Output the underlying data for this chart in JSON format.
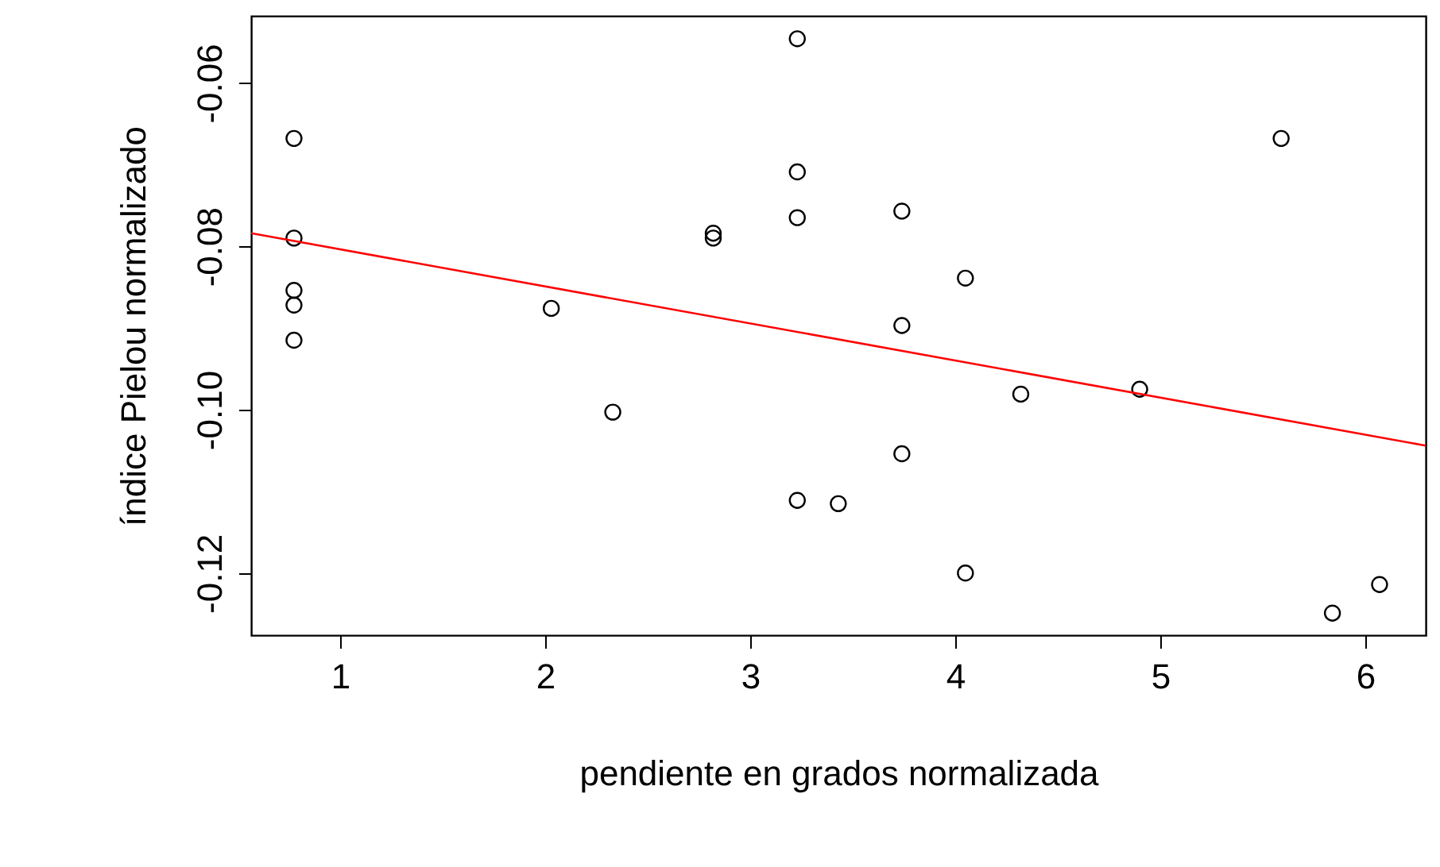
{
  "chart_data": {
    "type": "scatter",
    "xlabel": "pendiente en grados normalizada",
    "ylabel": "índice Pielou normalizado",
    "xlim": [
      0.566,
      6.295
    ],
    "ylim": [
      -0.1276,
      -0.0518
    ],
    "xticks": [
      1,
      2,
      3,
      4,
      5,
      6
    ],
    "yticks": [
      {
        "value": -0.12,
        "label": "-0.12"
      },
      {
        "value": -0.1,
        "label": "-0.10"
      },
      {
        "value": -0.08,
        "label": "-0.08"
      },
      {
        "value": -0.06,
        "label": "-0.06"
      }
    ],
    "grid": false,
    "series": [
      {
        "marker": "circle",
        "color": "#000000",
        "x": [
          0.775,
          0.775,
          0.775,
          0.775,
          0.775,
          2.03,
          2.33,
          2.82,
          2.82,
          3.23,
          3.23,
          3.23,
          3.23,
          3.43,
          3.74,
          3.74,
          3.74,
          4.05,
          4.05,
          4.32,
          4.9,
          5.59,
          5.84,
          6.07
        ],
        "values": [
          -0.0668,
          -0.079,
          -0.0854,
          -0.0872,
          -0.0915,
          -0.0876,
          -0.1003,
          -0.0784,
          -0.079,
          -0.0546,
          -0.0709,
          -0.0765,
          -0.1111,
          -0.1115,
          -0.0757,
          -0.0897,
          -0.1054,
          -0.0839,
          -0.12,
          -0.0981,
          -0.0975,
          -0.0668,
          -0.1249,
          -0.1214
        ]
      },
      {
        "type": "line",
        "marker": "none",
        "color": "#ff0000",
        "line_style": "solid",
        "x": [
          0.566,
          6.295
        ],
        "values": [
          -0.0784,
          -0.1044
        ]
      }
    ]
  }
}
